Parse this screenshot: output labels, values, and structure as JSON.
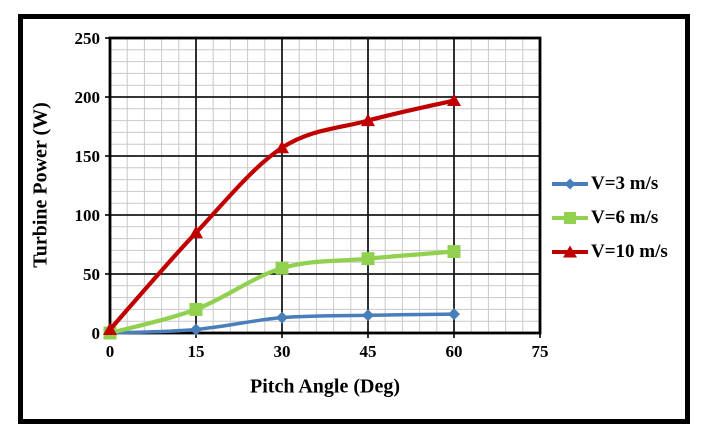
{
  "chart_data": {
    "type": "line",
    "title": "",
    "xlabel": "Pitch Angle (Deg)",
    "ylabel": "Turbine Power (W)",
    "x": [
      0,
      15,
      30,
      45,
      60
    ],
    "xlim": [
      0,
      75
    ],
    "ylim": [
      0,
      250
    ],
    "xticks": [
      0,
      15,
      30,
      45,
      60,
      75
    ],
    "yticks": [
      0,
      50,
      100,
      150,
      200,
      250
    ],
    "x_minor_step": 3,
    "y_minor_step": 10,
    "grid": "major+minor",
    "major_grid_color": "#1a1a1a",
    "minor_grid_color": "#c9c9c9",
    "border_color": "#000000",
    "legend_position": "right",
    "series": [
      {
        "name": "V=3 m/s",
        "color": "#4a7ebb",
        "marker": "diamond",
        "values": [
          0,
          3,
          13,
          15,
          16
        ]
      },
      {
        "name": "V=6 m/s",
        "color": "#92d050",
        "marker": "square",
        "values": [
          0,
          20,
          55,
          63,
          69
        ]
      },
      {
        "name": "V=10 m/s",
        "color": "#c00000",
        "marker": "triangle",
        "values": [
          3,
          85,
          157,
          180,
          197
        ]
      }
    ]
  }
}
